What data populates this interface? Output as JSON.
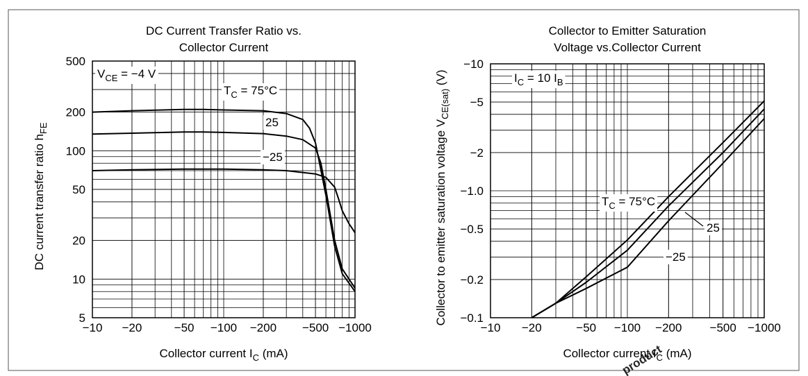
{
  "chart_data": [
    {
      "type": "line",
      "title": [
        "DC Current Transfer Ratio vs.",
        "Collector Current"
      ],
      "xlabel": {
        "text": "Collector current  I",
        "sub": "C",
        "rest": "  (mA)"
      },
      "ylabel": {
        "text": "DC current transfer ratio  h",
        "sub": "FE"
      },
      "xscale": "log",
      "yscale": "log",
      "grid": true,
      "xlim": [
        -10,
        -1000
      ],
      "ylim": [
        5,
        500
      ],
      "xticks": [
        {
          "value": -10,
          "label": "−10"
        },
        {
          "value": -20,
          "label": "−20"
        },
        {
          "value": -50,
          "label": "−50"
        },
        {
          "value": -100,
          "label": "−100"
        },
        {
          "value": -200,
          "label": "−200"
        },
        {
          "value": -500,
          "label": "−500"
        },
        {
          "value": -1000,
          "label": "−1000"
        }
      ],
      "yticks": [
        500,
        200,
        100,
        50,
        20,
        10,
        5
      ],
      "annotation": {
        "text": "V",
        "sub": "CE",
        "rest": " = −4 V"
      },
      "series_name_prefix": {
        "text": "T",
        "sub": "C"
      },
      "series": [
        {
          "name": " = 75°C",
          "color": "#000000",
          "x": [
            -10,
            -20,
            -50,
            -70,
            -100,
            -200,
            -300,
            -400,
            -450,
            -500,
            -600,
            -700,
            -800,
            -1000
          ],
          "values": [
            200,
            205,
            210,
            210,
            208,
            205,
            195,
            175,
            150,
            115,
            45,
            18,
            11,
            8
          ]
        },
        {
          "name": "25",
          "color": "#000000",
          "x": [
            -10,
            -20,
            -50,
            -70,
            -100,
            -200,
            -300,
            -400,
            -500,
            -550,
            -600,
            -700,
            -800,
            -1000
          ],
          "values": [
            135,
            137,
            140,
            140,
            139,
            136,
            130,
            122,
            105,
            80,
            50,
            20,
            12,
            8.5
          ]
        },
        {
          "name": "−25",
          "color": "#000000",
          "x": [
            -10,
            -20,
            -50,
            -70,
            -100,
            -200,
            -300,
            -500,
            -600,
            -700,
            -750,
            -800,
            -900,
            -1000
          ],
          "values": [
            70,
            71,
            72,
            72,
            72,
            71,
            70,
            66,
            62,
            52,
            42,
            34,
            27,
            23
          ]
        }
      ]
    },
    {
      "type": "line",
      "title": [
        "Collector to Emitter Saturation",
        "Voltage vs.Collector Current"
      ],
      "xlabel": {
        "text": "Collector current  I",
        "sub": "C",
        "rest": "  (mA)"
      },
      "ylabel": {
        "text": "Collector to emitter saturation voltage  V",
        "sub": "CE(sat)",
        "rest": "  (V)"
      },
      "xscale": "log",
      "yscale": "log",
      "grid": true,
      "xlim": [
        -10,
        -1000
      ],
      "ylim": [
        -0.1,
        -10
      ],
      "xticks": [
        {
          "value": -10,
          "label": "−10"
        },
        {
          "value": -20,
          "label": "−20"
        },
        {
          "value": -50,
          "label": "−50"
        },
        {
          "value": -100,
          "label": "−100"
        },
        {
          "value": -200,
          "label": "−200"
        },
        {
          "value": -500,
          "label": "−500"
        },
        {
          "value": -1000,
          "label": "−1000"
        }
      ],
      "yticks": [
        {
          "value": -10,
          "label": "−10"
        },
        {
          "value": -5,
          "label": "−5"
        },
        {
          "value": -2,
          "label": "−2"
        },
        {
          "value": -1,
          "label": "−1.0"
        },
        {
          "value": -0.5,
          "label": "−0.5"
        },
        {
          "value": -0.2,
          "label": "−0.2"
        },
        {
          "value": -0.1,
          "label": "−0.1"
        }
      ],
      "annotation": {
        "text": "I",
        "sub": "C",
        "rest": " = 10 I",
        "sub2": "B"
      },
      "series_name_prefix": {
        "text": "T",
        "sub": "C"
      },
      "series": [
        {
          "name": " = 75°C",
          "color": "#000000",
          "x": [
            -20,
            -30,
            -50,
            -100,
            -200,
            -500,
            -1000
          ],
          "values": [
            -0.1,
            -0.13,
            -0.21,
            -0.41,
            -0.9,
            -2.4,
            -5.1
          ]
        },
        {
          "name": "25",
          "color": "#000000",
          "x": [
            -20,
            -30,
            -50,
            -100,
            -200,
            -500,
            -1000
          ],
          "values": [
            -0.1,
            -0.13,
            -0.19,
            -0.34,
            -0.76,
            -2.0,
            -4.4
          ]
        },
        {
          "name": "−25",
          "color": "#000000",
          "x": [
            -20,
            -30,
            -50,
            -100,
            -200,
            -500,
            -1000
          ],
          "values": [
            -0.1,
            -0.13,
            -0.17,
            -0.25,
            -0.58,
            -1.65,
            -3.7
          ]
        }
      ]
    }
  ],
  "watermark": "product"
}
